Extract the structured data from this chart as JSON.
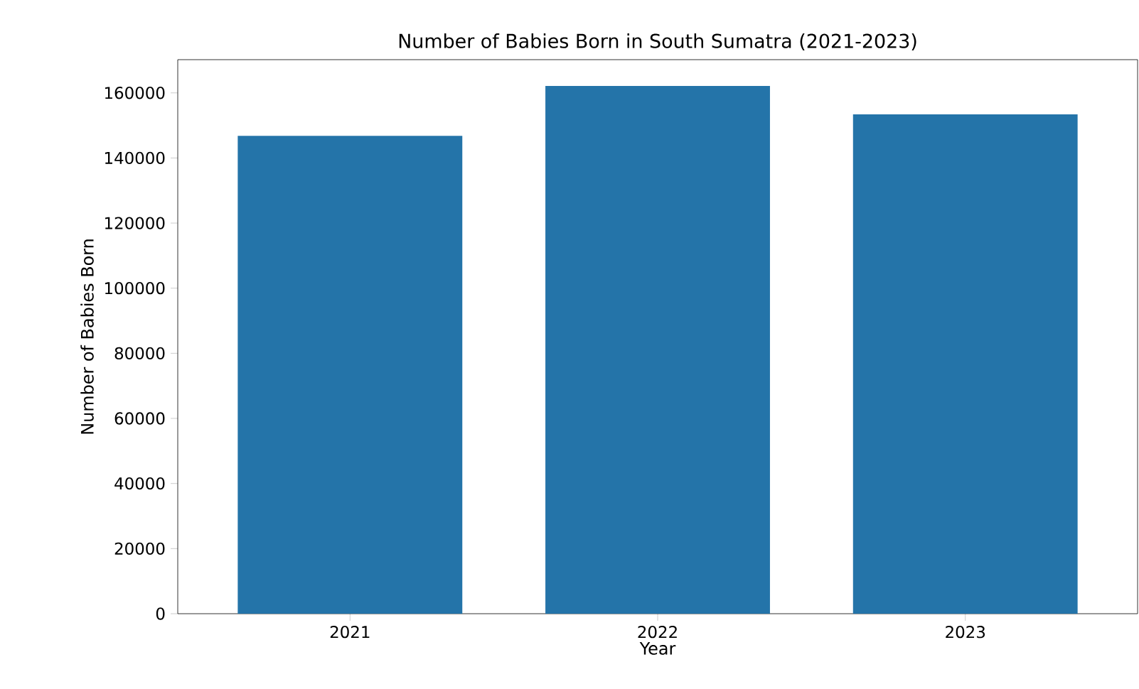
{
  "chart_data": {
    "type": "bar",
    "title": "Number of Babies Born in South Sumatra (2021-2023)",
    "xlabel": "Year",
    "ylabel": "Number of Babies Born",
    "categories": [
      "2021",
      "2022",
      "2023"
    ],
    "values": [
      146800,
      162100,
      153400
    ],
    "color": "#2474a9",
    "ylim": [
      0,
      170200
    ],
    "yticks": [
      0,
      20000,
      40000,
      60000,
      80000,
      100000,
      120000,
      140000,
      160000
    ]
  }
}
